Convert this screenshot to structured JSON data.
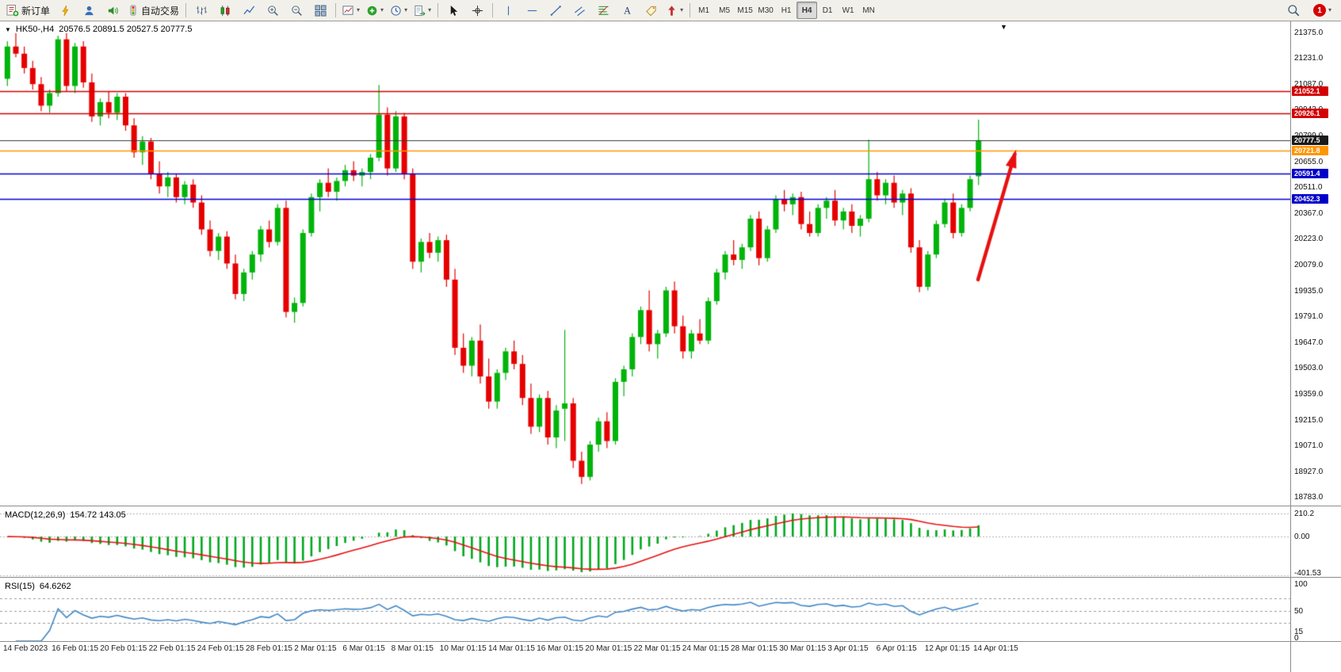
{
  "toolbar": {
    "new_order_label": "新订单",
    "auto_trading_label": "自动交易",
    "timeframes": [
      "M1",
      "M5",
      "M15",
      "M30",
      "H1",
      "H4",
      "D1",
      "W1",
      "MN"
    ],
    "active_timeframe": "H4",
    "notification_count": "1"
  },
  "chart": {
    "symbol_period": "HK50-,H4",
    "ohlc_text": "20576.5 20891.5 20527.5 20777.5"
  },
  "macd": {
    "name": "MACD(12,26,9)",
    "values": "154.72 143.05",
    "ticks": [
      {
        "label": "210.2",
        "value": 210.2
      },
      {
        "label": "0.00",
        "value": 0
      },
      {
        "label": "-401.53",
        "value": -401.53
      }
    ]
  },
  "rsi": {
    "name": "RSI(15)",
    "value": "64.6262",
    "ticks": [
      {
        "label": "100",
        "value": 100
      },
      {
        "label": "50",
        "value": 50
      },
      {
        "label": "15",
        "value": 15
      },
      {
        "label": "0",
        "value": 0
      }
    ],
    "levels": [
      70,
      50,
      30
    ]
  },
  "chart_data": {
    "type": "candlestick",
    "symbol": "HK50-",
    "timeframe": "H4",
    "last_bar": {
      "open": 20576.5,
      "high": 20891.5,
      "low": 20527.5,
      "close": 20777.5
    },
    "y_range": {
      "min": 18740,
      "max": 21440
    },
    "price_ticks": [
      21375,
      21231,
      21087,
      20943,
      20799,
      20655,
      20511,
      20367,
      20223,
      20079,
      19935,
      19791,
      19647,
      19503,
      19359,
      19215,
      19071,
      18927,
      18783
    ],
    "hlines": [
      {
        "label": "21052.1",
        "value": 21052.1,
        "color": "#d40000",
        "badge": "#d40000"
      },
      {
        "label": "20926.1",
        "value": 20926.1,
        "color": "#d40000",
        "badge": "#d40000"
      },
      {
        "label": "20777.5",
        "value": 20777.5,
        "color": "#3a3a3a",
        "badge": "#1a1a1a",
        "bid": true
      },
      {
        "label": "20721.8",
        "value": 20721.8,
        "color": "#ff9600",
        "badge": "#ff9600"
      },
      {
        "label": "20591.4",
        "value": 20591.4,
        "color": "#0000d4",
        "badge": "#0000c8"
      },
      {
        "label": "20452.3",
        "value": 20452.3,
        "color": "#0000d4",
        "badge": "#0000c8"
      }
    ],
    "arrow": {
      "x1_frac": 0.758,
      "price1": 20000,
      "x2_frac": 0.7865,
      "price2": 20700,
      "color": "#e81010"
    },
    "colors": {
      "up": "#00b40a",
      "down": "#e60000",
      "macd_hist": "#00a81e",
      "macd_signal": "#e81010",
      "rsi_line": "#3f87c7"
    },
    "time_labels": [
      "14 Feb 2023",
      "16 Feb 01:15",
      "20 Feb 01:15",
      "22 Feb 01:15",
      "24 Feb 01:15",
      "28 Feb 01:15",
      "2 Mar 01:15",
      "6 Mar 01:15",
      "8 Mar 01:15",
      "10 Mar 01:15",
      "14 Mar 01:15",
      "16 Mar 01:15",
      "20 Mar 01:15",
      "22 Mar 01:15",
      "24 Mar 01:15",
      "28 Mar 01:15",
      "30 Mar 01:15",
      "3 Apr 01:15",
      "6 Apr 01:15",
      "12 Apr 01:15",
      "14 Apr 01:15"
    ],
    "candles": [
      [
        21120,
        21330,
        21080,
        21300
      ],
      [
        21300,
        21375,
        21240,
        21260
      ],
      [
        21260,
        21300,
        21150,
        21180
      ],
      [
        21180,
        21220,
        21060,
        21090
      ],
      [
        21090,
        21130,
        20940,
        20970
      ],
      [
        20970,
        21060,
        20930,
        21040
      ],
      [
        21040,
        21360,
        21020,
        21340
      ],
      [
        21340,
        21375,
        21050,
        21080
      ],
      [
        21080,
        21320,
        21040,
        21300
      ],
      [
        21300,
        21330,
        21070,
        21100
      ],
      [
        21100,
        21150,
        20880,
        20910
      ],
      [
        20910,
        21010,
        20860,
        20990
      ],
      [
        20990,
        21050,
        20900,
        20930
      ],
      [
        20930,
        21040,
        20890,
        21020
      ],
      [
        21020,
        21040,
        20830,
        20860
      ],
      [
        20860,
        20900,
        20680,
        20710
      ],
      [
        20710,
        20800,
        20640,
        20770
      ],
      [
        20770,
        20790,
        20560,
        20590
      ],
      [
        20590,
        20660,
        20480,
        20520
      ],
      [
        20520,
        20600,
        20460,
        20570
      ],
      [
        20570,
        20590,
        20430,
        20460
      ],
      [
        20460,
        20550,
        20420,
        20530
      ],
      [
        20530,
        20560,
        20400,
        20430
      ],
      [
        20430,
        20470,
        20250,
        20280
      ],
      [
        20280,
        20330,
        20130,
        20160
      ],
      [
        20160,
        20260,
        20110,
        20240
      ],
      [
        20240,
        20270,
        20060,
        20090
      ],
      [
        20090,
        20140,
        19890,
        19920
      ],
      [
        19920,
        20060,
        19880,
        20040
      ],
      [
        20040,
        20160,
        20000,
        20140
      ],
      [
        20140,
        20300,
        20100,
        20280
      ],
      [
        20280,
        20330,
        20180,
        20210
      ],
      [
        20210,
        20420,
        20190,
        20400
      ],
      [
        20400,
        20440,
        19790,
        19820
      ],
      [
        19820,
        19900,
        19760,
        19870
      ],
      [
        19870,
        20280,
        19850,
        20260
      ],
      [
        20260,
        20480,
        20240,
        20460
      ],
      [
        20460,
        20560,
        20380,
        20540
      ],
      [
        20540,
        20620,
        20460,
        20490
      ],
      [
        20490,
        20570,
        20440,
        20550
      ],
      [
        20550,
        20640,
        20520,
        20610
      ],
      [
        20610,
        20660,
        20550,
        20580
      ],
      [
        20580,
        20620,
        20520,
        20600
      ],
      [
        20600,
        20700,
        20560,
        20680
      ],
      [
        20680,
        21085,
        20660,
        20920
      ],
      [
        20920,
        20960,
        20580,
        20620
      ],
      [
        20620,
        20940,
        20600,
        20910
      ],
      [
        20910,
        20930,
        20560,
        20590
      ],
      [
        20590,
        20620,
        20060,
        20100
      ],
      [
        20100,
        20230,
        20040,
        20210
      ],
      [
        20210,
        20260,
        20120,
        20150
      ],
      [
        20150,
        20240,
        20100,
        20220
      ],
      [
        20220,
        20250,
        19960,
        20000
      ],
      [
        20000,
        20060,
        19580,
        19620
      ],
      [
        19620,
        19700,
        19480,
        19520
      ],
      [
        19520,
        19680,
        19460,
        19660
      ],
      [
        19660,
        19750,
        19420,
        19460
      ],
      [
        19460,
        19560,
        19280,
        19320
      ],
      [
        19320,
        19500,
        19280,
        19480
      ],
      [
        19480,
        19620,
        19440,
        19600
      ],
      [
        19600,
        19660,
        19500,
        19530
      ],
      [
        19530,
        19580,
        19300,
        19340
      ],
      [
        19340,
        19420,
        19140,
        19180
      ],
      [
        19180,
        19360,
        19150,
        19340
      ],
      [
        19340,
        19380,
        19080,
        19120
      ],
      [
        19120,
        19300,
        19060,
        19270
      ],
      [
        19280,
        19720,
        19100,
        19310
      ],
      [
        19310,
        19340,
        18950,
        18990
      ],
      [
        18990,
        19040,
        18860,
        18900
      ],
      [
        18900,
        19100,
        18880,
        19080
      ],
      [
        19080,
        19230,
        19040,
        19210
      ],
      [
        19210,
        19260,
        19060,
        19100
      ],
      [
        19100,
        19450,
        19080,
        19430
      ],
      [
        19430,
        19520,
        19350,
        19500
      ],
      [
        19500,
        19700,
        19460,
        19680
      ],
      [
        19680,
        19850,
        19640,
        19830
      ],
      [
        19830,
        19940,
        19600,
        19640
      ],
      [
        19640,
        19720,
        19560,
        19700
      ],
      [
        19700,
        19960,
        19680,
        19940
      ],
      [
        19940,
        19990,
        19700,
        19740
      ],
      [
        19740,
        19800,
        19560,
        19600
      ],
      [
        19600,
        19720,
        19560,
        19700
      ],
      [
        19700,
        19780,
        19640,
        19660
      ],
      [
        19660,
        19900,
        19640,
        19880
      ],
      [
        19880,
        20060,
        19860,
        20040
      ],
      [
        20040,
        20160,
        20000,
        20140
      ],
      [
        20140,
        20220,
        20080,
        20110
      ],
      [
        20110,
        20200,
        20060,
        20180
      ],
      [
        20180,
        20360,
        20160,
        20340
      ],
      [
        20340,
        20380,
        20080,
        20120
      ],
      [
        20120,
        20300,
        20100,
        20280
      ],
      [
        20280,
        20470,
        20260,
        20450
      ],
      [
        20450,
        20500,
        20380,
        20420
      ],
      [
        20420,
        20480,
        20360,
        20460
      ],
      [
        20460,
        20490,
        20280,
        20310
      ],
      [
        20310,
        20380,
        20240,
        20260
      ],
      [
        20260,
        20420,
        20240,
        20400
      ],
      [
        20400,
        20460,
        20340,
        20440
      ],
      [
        20440,
        20500,
        20300,
        20330
      ],
      [
        20330,
        20400,
        20280,
        20380
      ],
      [
        20380,
        20420,
        20260,
        20300
      ],
      [
        20300,
        20360,
        20240,
        20340
      ],
      [
        20340,
        20780,
        20320,
        20560
      ],
      [
        20560,
        20600,
        20440,
        20470
      ],
      [
        20470,
        20560,
        20420,
        20540
      ],
      [
        20540,
        20580,
        20400,
        20430
      ],
      [
        20430,
        20500,
        20360,
        20480
      ],
      [
        20480,
        20510,
        20150,
        20180
      ],
      [
        20180,
        20220,
        19930,
        19960
      ],
      [
        19960,
        20160,
        19940,
        20140
      ],
      [
        20140,
        20330,
        20120,
        20310
      ],
      [
        20310,
        20450,
        20290,
        20430
      ],
      [
        20430,
        20480,
        20230,
        20260
      ],
      [
        20260,
        20420,
        20240,
        20400
      ],
      [
        20400,
        20580,
        20380,
        20560
      ],
      [
        20576.5,
        20891.5,
        20527.5,
        20777.5
      ]
    ]
  }
}
